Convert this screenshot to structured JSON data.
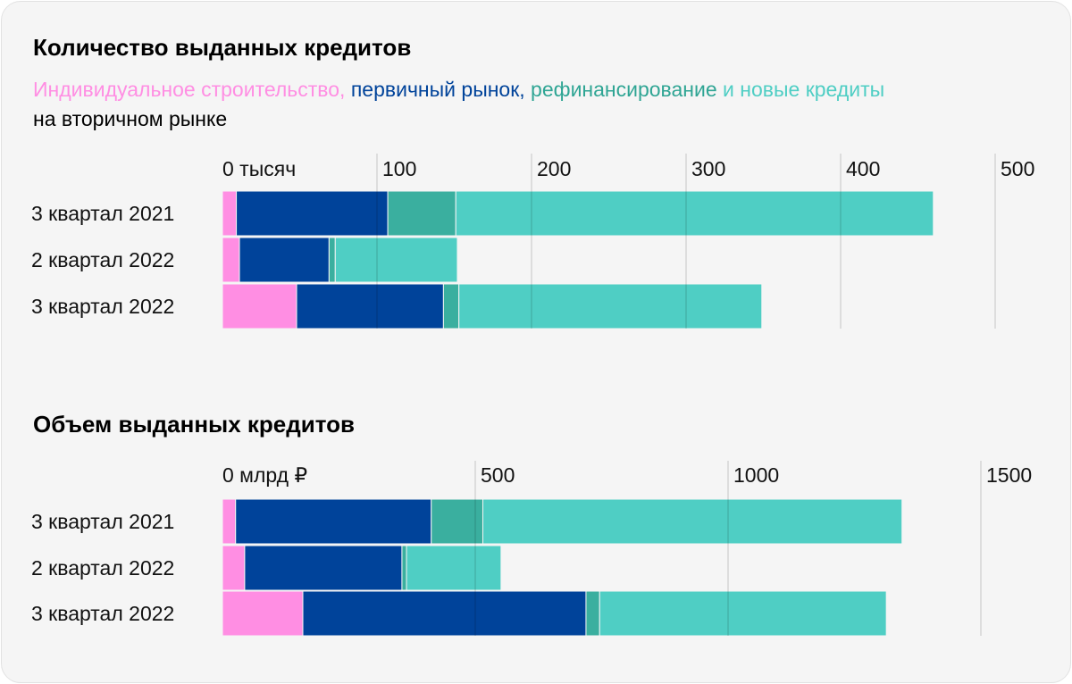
{
  "chart_data": [
    {
      "type": "bar",
      "orientation": "horizontal-stacked",
      "title": "Количество выданных кредитов",
      "unit_label": "0 тысяч",
      "ticks": [
        "0 тысяч",
        "100",
        "200",
        "300",
        "400",
        "500"
      ],
      "tick_values": [
        0,
        100,
        200,
        300,
        400,
        500
      ],
      "xlim": [
        0,
        500
      ],
      "grid": true,
      "categories": [
        "3 квартал 2021",
        "2 квартал 2022",
        "3 квартал 2022"
      ],
      "series": [
        {
          "name": "Индивидуальное строительство",
          "color": "#ff8ee3",
          "values": [
            9,
            11,
            48
          ]
        },
        {
          "name": "первичный рынок",
          "color": "#00439a",
          "values": [
            98,
            58,
            95
          ]
        },
        {
          "name": "рефинансирование",
          "color": "#3aaf9f",
          "values": [
            44,
            4,
            10
          ]
        },
        {
          "name": "новые кредиты на вторичном рынке",
          "color": "#4fcec4",
          "values": [
            309,
            79,
            196
          ]
        }
      ]
    },
    {
      "type": "bar",
      "orientation": "horizontal-stacked",
      "title": "Объем выданных кредитов",
      "unit_label": "0 млрд ₽",
      "ticks": [
        "0 млрд ₽",
        "500",
        "1000",
        "1500"
      ],
      "tick_values": [
        0,
        500,
        1000,
        1500
      ],
      "xlim": [
        0,
        1500
      ],
      "grid": true,
      "categories": [
        "3 квартал 2021",
        "2 квартал 2022",
        "3 квартал 2022"
      ],
      "series": [
        {
          "name": "Индивидуальное строительство",
          "color": "#ff8ee3",
          "values": [
            26,
            44,
            159
          ]
        },
        {
          "name": "первичный рынок",
          "color": "#00439a",
          "values": [
            387,
            311,
            560
          ]
        },
        {
          "name": "рефинансирование",
          "color": "#3aaf9f",
          "values": [
            102,
            9,
            27
          ]
        },
        {
          "name": "новые кредиты на вторичном рынке",
          "color": "#4fcec4",
          "values": [
            829,
            187,
            567
          ]
        }
      ]
    }
  ],
  "legend": {
    "part1": "Индивидуальное строительство,",
    "part2": " первичный рынок,",
    "part3": " рефинансирование",
    "part4": " и новые кредиты",
    "part5": "на вторичном рынке"
  }
}
